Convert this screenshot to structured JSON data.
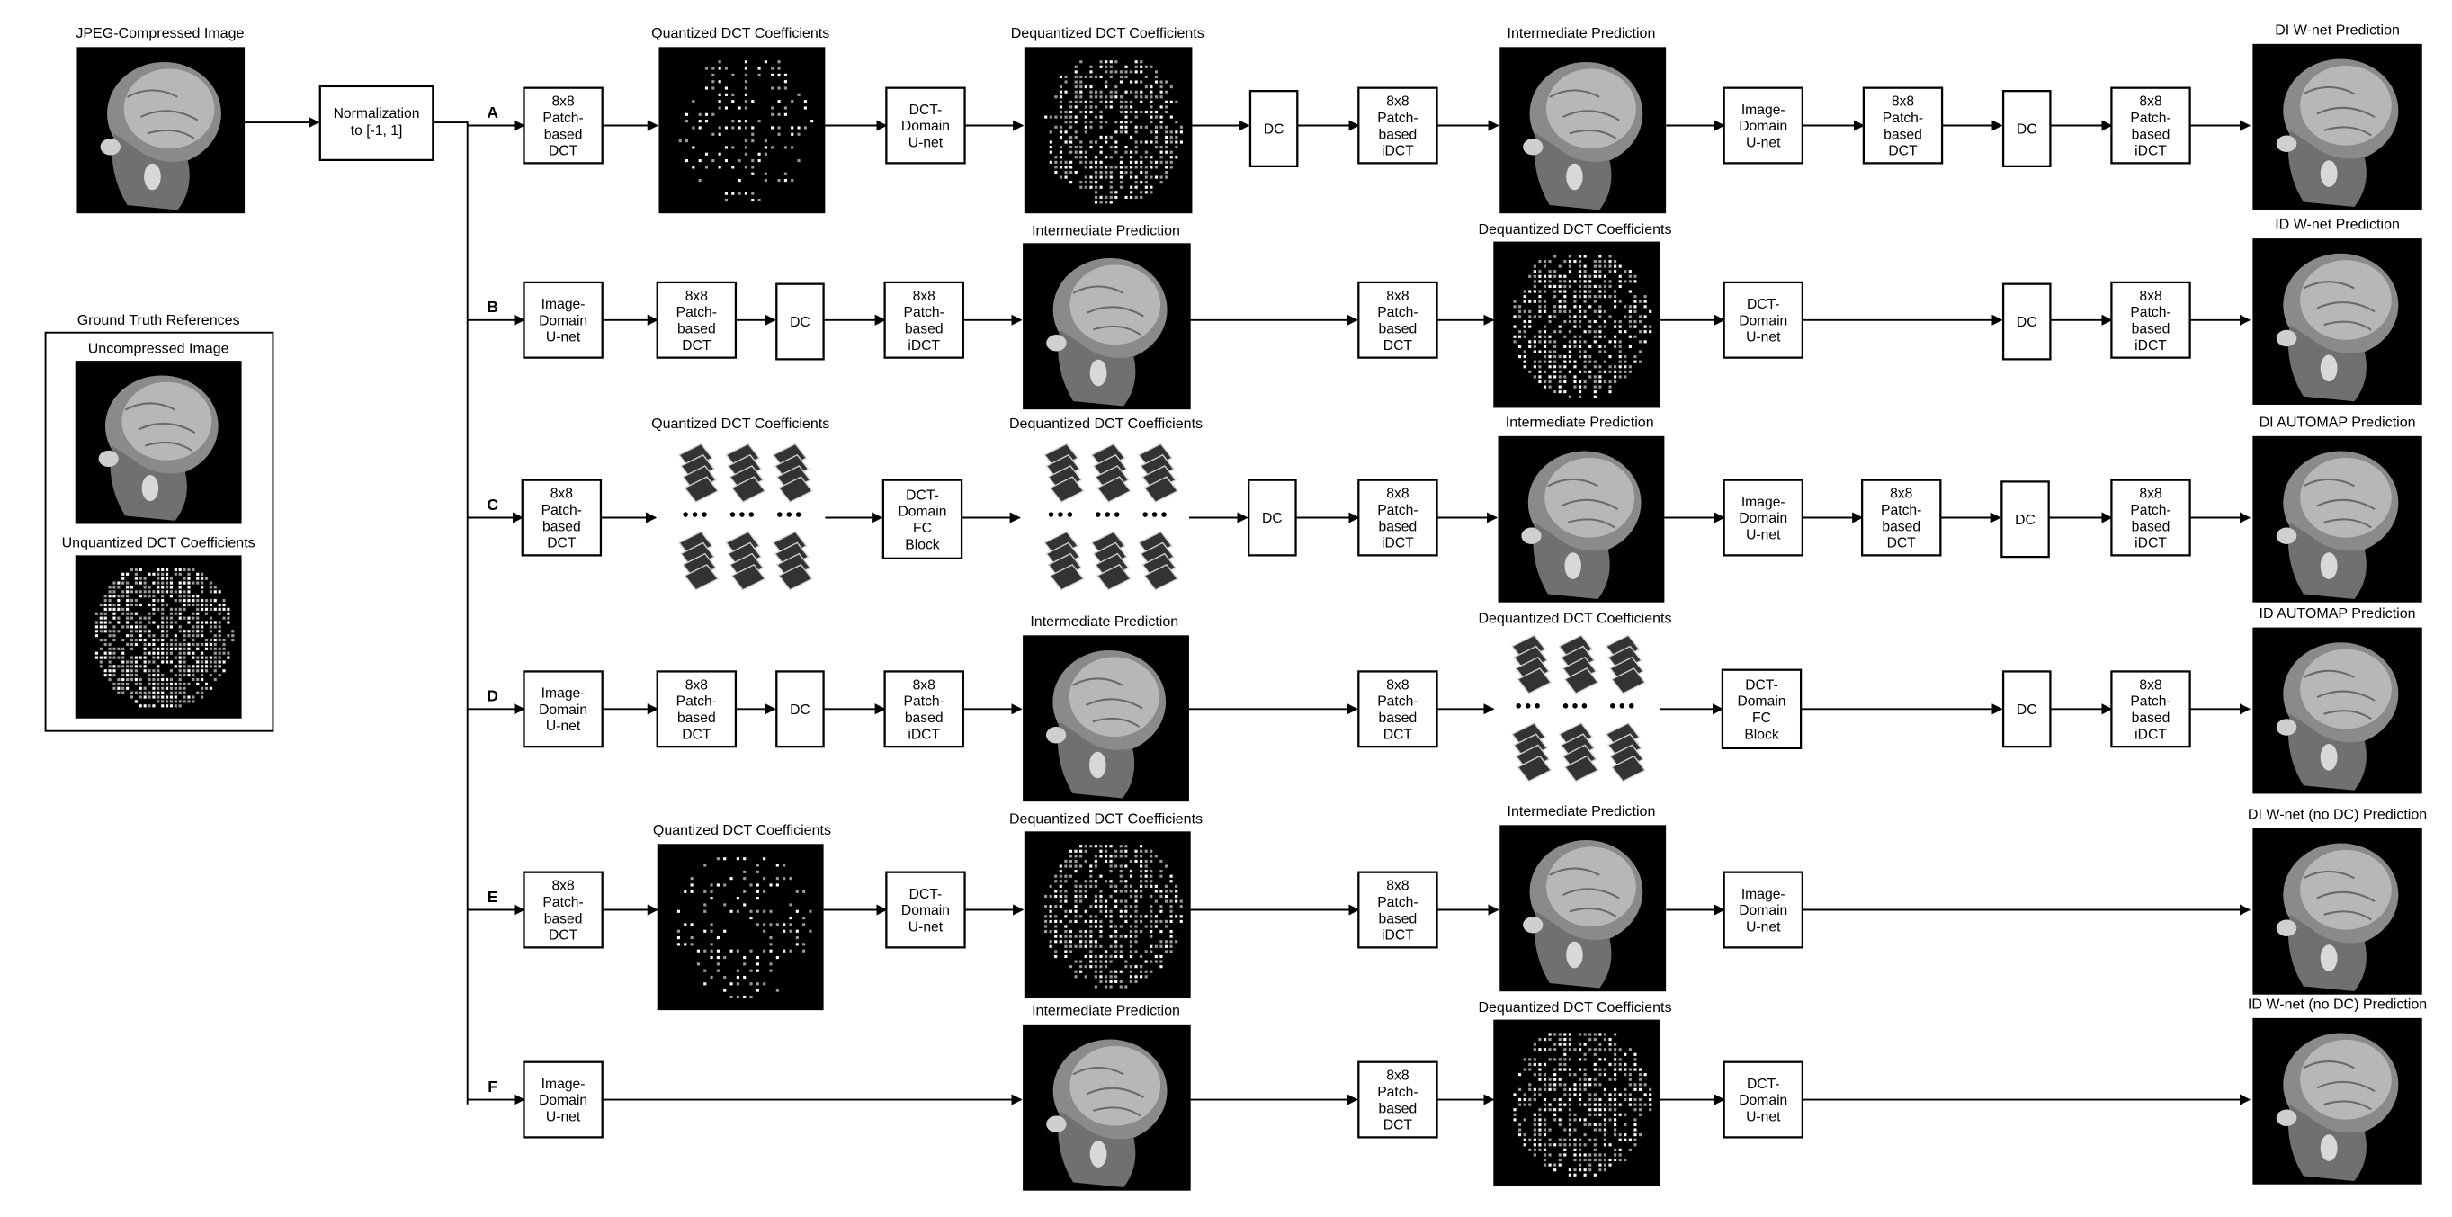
{
  "input": {
    "caption": "JPEG-Compressed Image"
  },
  "normalization": {
    "label": [
      "Normalization",
      "to [-1, 1]"
    ]
  },
  "ground_truth": {
    "title": "Ground Truth References",
    "uncompressed_caption": "Uncompressed Image",
    "coeff_caption": "Unquantized DCT Coefficients"
  },
  "block_labels": {
    "dct": [
      "8x8",
      "Patch-",
      "based",
      "DCT"
    ],
    "idct": [
      "8x8",
      "Patch-",
      "based",
      "iDCT"
    ],
    "dct_unet": [
      "DCT-",
      "Domain",
      "U-net"
    ],
    "img_unet": [
      "Image-",
      "Domain",
      "U-net"
    ],
    "dct_fc": [
      "DCT-",
      "Domain",
      "FC",
      "Block"
    ],
    "dc": [
      "DC"
    ]
  },
  "image_captions": {
    "quantized": "Quantized DCT Coefficients",
    "dequantized": "Dequantized DCT Coefficients",
    "intermediate": "Intermediate Prediction"
  },
  "lanes": [
    {
      "letter": "A",
      "output_caption": "DI W-net Prediction"
    },
    {
      "letter": "B",
      "output_caption": "ID W-net Prediction"
    },
    {
      "letter": "C",
      "output_caption": "DI AUTOMAP Prediction"
    },
    {
      "letter": "D",
      "output_caption": "ID AUTOMAP Prediction"
    },
    {
      "letter": "E",
      "output_caption": "DI W-net (no DC) Prediction"
    },
    {
      "letter": "F",
      "output_caption": "ID W-net (no DC) Prediction"
    }
  ],
  "colors": {
    "panel_background": "#000000",
    "stroke": "#000000",
    "page": "#ffffff"
  }
}
